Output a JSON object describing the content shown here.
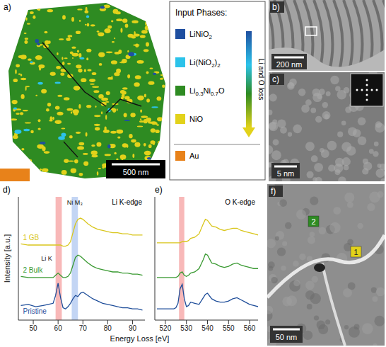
{
  "panels": {
    "a": {
      "label": "a)",
      "legend_title": "Input Phases:",
      "phases": [
        {
          "name": "LiNiO2",
          "color": "#1f4fa0"
        },
        {
          "name": "Li(NiO2)2",
          "color": "#2cc3ea"
        },
        {
          "name": "Li0.3Ni0.7O",
          "color": "#2e8b22"
        },
        {
          "name": "NiO",
          "color": "#e2d21a"
        }
      ],
      "arrow_label": "Li and O loss",
      "other_phases": [
        {
          "name": "Au",
          "color": "#e8821a"
        }
      ],
      "scale_bar": "500 nm"
    },
    "b": {
      "label": "b)",
      "scale_bar": "200 nm"
    },
    "c": {
      "label": "c)",
      "scale_bar": "5 nm"
    },
    "f": {
      "label": "f)",
      "scale_bar": "50 nm",
      "markers": [
        {
          "text": "2",
          "color": "#2e8b22"
        },
        {
          "text": "1",
          "color": "#e2d21a"
        }
      ]
    }
  },
  "x_label": "Energy Loss [eV]",
  "chart_data": [
    {
      "panel_label": "d)",
      "type": "line",
      "title": "Li K-edge",
      "y_label": "Intensity [a.u.]",
      "x": [
        45,
        48,
        51,
        54,
        56,
        58,
        59,
        60,
        61,
        62,
        63,
        64,
        65,
        66,
        67,
        68,
        69,
        70,
        72,
        74,
        76,
        78,
        80,
        82,
        84,
        86,
        88,
        90,
        92,
        94
      ],
      "xlim": [
        44,
        95
      ],
      "xticks": [
        50,
        60,
        70,
        80,
        90
      ],
      "ylim": [
        0,
        11
      ],
      "tick_labels": "x",
      "series": [
        {
          "name": "1 GB",
          "color": "#d9c61c",
          "values": [
            6.8,
            6.7,
            6.7,
            6.7,
            6.7,
            6.7,
            6.7,
            6.7,
            6.7,
            6.6,
            6.6,
            6.7,
            7.0,
            7.8,
            8.6,
            9.0,
            9.1,
            9.0,
            8.6,
            8.3,
            8.1,
            8.0,
            7.9,
            7.8,
            7.8,
            7.7,
            7.7,
            7.6,
            7.6,
            7.6
          ]
        },
        {
          "name": "2 Bulk",
          "color": "#3a9a32",
          "values": [
            3.9,
            3.8,
            3.8,
            3.8,
            3.8,
            3.8,
            4.0,
            4.2,
            4.0,
            3.8,
            3.8,
            3.9,
            4.2,
            4.9,
            5.6,
            5.8,
            5.7,
            5.5,
            5.1,
            4.8,
            4.6,
            4.5,
            4.4,
            4.3,
            4.3,
            4.2,
            4.2,
            4.1,
            4.1,
            4.0
          ]
        },
        {
          "name": "Pristine",
          "color": "#1f4e9a",
          "values": [
            1.3,
            1.4,
            1.2,
            1.3,
            1.4,
            1.5,
            2.2,
            3.3,
            2.0,
            1.1,
            1.0,
            1.2,
            1.5,
            1.9,
            2.2,
            2.1,
            2.4,
            2.5,
            2.2,
            1.9,
            1.7,
            1.5,
            1.4,
            1.3,
            1.2,
            1.1,
            1.1,
            1.0,
            1.0,
            0.9
          ]
        }
      ],
      "bands": [
        {
          "from": 59,
          "to": 61.5,
          "color": "#f59a9a",
          "label": "Li K"
        },
        {
          "from": 65.5,
          "to": 68,
          "color": "#a9c3ef",
          "label": "Ni M₃"
        }
      ]
    },
    {
      "panel_label": "e)",
      "type": "line",
      "title": "O K-edge",
      "x": [
        516,
        519,
        522,
        524,
        525,
        526,
        527,
        528,
        529,
        530,
        531,
        532,
        534,
        536,
        538,
        539,
        540,
        542,
        544,
        546,
        548,
        550,
        552,
        554,
        556,
        558,
        560,
        562,
        564
      ],
      "xlim": [
        515,
        564
      ],
      "xticks": [
        520,
        530,
        540,
        550,
        560
      ],
      "ylim": [
        0,
        11
      ],
      "tick_labels": "x",
      "series": [
        {
          "color": "#d9c61c",
          "values": [
            6.9,
            6.9,
            6.9,
            6.9,
            6.9,
            6.9,
            6.9,
            7.0,
            7.0,
            7.0,
            7.1,
            7.3,
            7.4,
            7.7,
            8.6,
            9.0,
            8.9,
            8.4,
            8.3,
            8.1,
            8.0,
            8.1,
            8.2,
            8.2,
            8.0,
            7.9,
            7.8,
            7.7,
            7.6
          ]
        },
        {
          "color": "#3a9a32",
          "values": [
            3.8,
            3.8,
            3.8,
            3.8,
            3.8,
            3.9,
            4.2,
            4.3,
            4.0,
            3.9,
            4.0,
            4.2,
            4.3,
            4.6,
            5.4,
            5.9,
            5.8,
            5.1,
            5.0,
            4.8,
            4.7,
            4.8,
            5.0,
            5.1,
            4.9,
            4.8,
            4.7,
            4.6,
            4.6
          ]
        },
        {
          "color": "#1f4e9a",
          "values": [
            1.0,
            1.0,
            1.0,
            1.0,
            1.1,
            1.5,
            2.8,
            3.2,
            1.9,
            1.2,
            1.3,
            1.6,
            1.5,
            1.4,
            2.0,
            2.3,
            2.4,
            1.9,
            1.7,
            1.6,
            1.6,
            1.7,
            1.9,
            2.0,
            1.8,
            1.6,
            1.4,
            1.3,
            1.2
          ]
        }
      ],
      "bands": [
        {
          "from": 526.5,
          "to": 529,
          "color": "#f59a9a"
        }
      ]
    }
  ]
}
